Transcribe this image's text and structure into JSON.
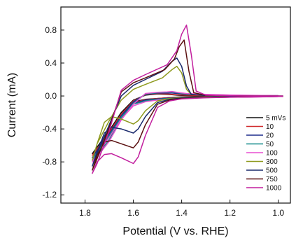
{
  "chart_data": {
    "type": "line",
    "title": "",
    "xlabel": "Potential (V vs. RHE)",
    "ylabel": "Current (mA)",
    "xlim": [
      1.9,
      0.95
    ],
    "ylim": [
      -1.3,
      1.08
    ],
    "x_reversed": true,
    "x_ticks": [
      "1.8",
      "1.6",
      "1.4",
      "1.2",
      "1.0"
    ],
    "y_ticks": [
      "0.8",
      "0.4",
      "0.0",
      "-0.4",
      "-0.8",
      "-1.2"
    ],
    "legend_position": "right",
    "grid": false,
    "series": [
      {
        "name": "5 mVs",
        "color": "#111111",
        "x": [
          1.0,
          1.1,
          1.2,
          1.3,
          1.38,
          1.42,
          1.44,
          1.46,
          1.5,
          1.55,
          1.6,
          1.65,
          1.7,
          1.75,
          1.77,
          1.75,
          1.7,
          1.65,
          1.6,
          1.55,
          1.5,
          1.45,
          1.4,
          1.3,
          1.2,
          1.1,
          1.0
        ],
        "y": [
          0.0,
          0.0,
          0.0,
          0.0,
          0.005,
          0.01,
          0.015,
          0.02,
          0.025,
          0.01,
          -0.05,
          -0.2,
          -0.45,
          -0.65,
          -0.7,
          -0.62,
          -0.42,
          -0.2,
          -0.07,
          -0.04,
          -0.03,
          -0.02,
          -0.01,
          -0.01,
          -0.01,
          -0.005,
          0.0
        ]
      },
      {
        "name": "10",
        "color": "#d0282a",
        "x": [
          1.0,
          1.1,
          1.2,
          1.3,
          1.38,
          1.42,
          1.44,
          1.46,
          1.5,
          1.55,
          1.6,
          1.65,
          1.7,
          1.75,
          1.77,
          1.75,
          1.7,
          1.65,
          1.6,
          1.55,
          1.5,
          1.45,
          1.4,
          1.3,
          1.2,
          1.1,
          1.0
        ],
        "y": [
          0.0,
          0.0,
          0.0,
          0.005,
          0.01,
          0.015,
          0.02,
          0.025,
          0.03,
          0.015,
          -0.06,
          -0.22,
          -0.47,
          -0.67,
          -0.72,
          -0.64,
          -0.44,
          -0.22,
          -0.08,
          -0.045,
          -0.03,
          -0.02,
          -0.012,
          -0.01,
          -0.01,
          -0.005,
          0.0
        ]
      },
      {
        "name": "20",
        "color": "#1f2d8c",
        "x": [
          1.0,
          1.1,
          1.2,
          1.3,
          1.38,
          1.42,
          1.44,
          1.46,
          1.5,
          1.55,
          1.6,
          1.65,
          1.7,
          1.75,
          1.77,
          1.75,
          1.7,
          1.65,
          1.6,
          1.55,
          1.5,
          1.45,
          1.4,
          1.3,
          1.2,
          1.1,
          1.0
        ],
        "y": [
          0.0,
          0.0,
          0.005,
          0.01,
          0.02,
          0.03,
          0.035,
          0.035,
          0.035,
          0.02,
          -0.07,
          -0.24,
          -0.5,
          -0.7,
          -0.75,
          -0.66,
          -0.46,
          -0.24,
          -0.09,
          -0.05,
          -0.035,
          -0.025,
          -0.015,
          -0.012,
          -0.01,
          -0.008,
          0.0
        ]
      },
      {
        "name": "50",
        "color": "#158a8a",
        "x": [
          1.0,
          1.1,
          1.2,
          1.3,
          1.38,
          1.42,
          1.44,
          1.46,
          1.5,
          1.55,
          1.6,
          1.65,
          1.7,
          1.75,
          1.77,
          1.75,
          1.7,
          1.65,
          1.6,
          1.55,
          1.5,
          1.45,
          1.4,
          1.3,
          1.2,
          1.1,
          1.0
        ],
        "y": [
          0.005,
          0.005,
          0.01,
          0.015,
          0.025,
          0.04,
          0.05,
          0.045,
          0.04,
          0.025,
          -0.09,
          -0.27,
          -0.53,
          -0.72,
          -0.78,
          -0.68,
          -0.48,
          -0.26,
          -0.1,
          -0.06,
          -0.04,
          -0.03,
          -0.02,
          -0.015,
          -0.012,
          -0.01,
          -0.005
        ]
      },
      {
        "name": "100",
        "color": "#e84fd0",
        "x": [
          1.0,
          1.1,
          1.2,
          1.3,
          1.38,
          1.42,
          1.44,
          1.46,
          1.5,
          1.55,
          1.6,
          1.65,
          1.7,
          1.75,
          1.77,
          1.75,
          1.7,
          1.65,
          1.6,
          1.55,
          1.5,
          1.45,
          1.4,
          1.3,
          1.2,
          1.1,
          1.0
        ],
        "y": [
          0.005,
          0.008,
          0.012,
          0.02,
          0.03,
          0.045,
          0.055,
          0.05,
          0.045,
          0.03,
          -0.1,
          -0.29,
          -0.55,
          -0.74,
          -0.8,
          -0.7,
          -0.5,
          -0.28,
          -0.12,
          -0.07,
          -0.05,
          -0.035,
          -0.025,
          -0.018,
          -0.015,
          -0.012,
          -0.008
        ]
      },
      {
        "name": "300",
        "color": "#8e9a1e",
        "x": [
          0.98,
          1.1,
          1.2,
          1.3,
          1.36,
          1.38,
          1.4,
          1.42,
          1.44,
          1.48,
          1.55,
          1.6,
          1.65,
          1.7,
          1.75,
          1.77,
          1.75,
          1.72,
          1.69,
          1.65,
          1.6,
          1.58,
          1.55,
          1.5,
          1.45,
          1.4,
          1.3,
          1.2,
          1.1,
          0.98
        ],
        "y": [
          0.0,
          0.0,
          0.0,
          0.005,
          0.02,
          0.08,
          0.28,
          0.36,
          0.32,
          0.22,
          0.14,
          0.08,
          -0.05,
          -0.3,
          -0.58,
          -0.78,
          -0.58,
          -0.32,
          -0.25,
          -0.28,
          -0.34,
          -0.3,
          -0.18,
          -0.06,
          -0.03,
          -0.02,
          -0.015,
          -0.01,
          -0.008,
          -0.005
        ]
      },
      {
        "name": "500",
        "color": "#1a2a6c",
        "x": [
          0.98,
          1.1,
          1.2,
          1.3,
          1.36,
          1.38,
          1.4,
          1.42,
          1.44,
          1.48,
          1.55,
          1.6,
          1.65,
          1.7,
          1.75,
          1.77,
          1.75,
          1.72,
          1.69,
          1.65,
          1.6,
          1.58,
          1.55,
          1.5,
          1.45,
          1.4,
          1.3,
          1.2,
          1.1,
          0.98
        ],
        "y": [
          0.0,
          0.0,
          0.0,
          0.005,
          0.02,
          0.12,
          0.36,
          0.46,
          0.42,
          0.3,
          0.2,
          0.13,
          0.0,
          -0.35,
          -0.7,
          -0.85,
          -0.68,
          -0.45,
          -0.38,
          -0.4,
          -0.45,
          -0.4,
          -0.25,
          -0.08,
          -0.04,
          -0.025,
          -0.018,
          -0.012,
          -0.01,
          -0.005
        ]
      },
      {
        "name": "750",
        "color": "#5a1010",
        "x": [
          0.98,
          1.1,
          1.2,
          1.3,
          1.35,
          1.37,
          1.39,
          1.41,
          1.43,
          1.47,
          1.55,
          1.6,
          1.65,
          1.7,
          1.75,
          1.77,
          1.75,
          1.72,
          1.69,
          1.65,
          1.6,
          1.58,
          1.55,
          1.5,
          1.45,
          1.4,
          1.3,
          1.2,
          1.1,
          0.98
        ],
        "y": [
          0.0,
          0.0,
          0.002,
          0.008,
          0.04,
          0.3,
          0.68,
          0.6,
          0.45,
          0.32,
          0.22,
          0.16,
          0.05,
          -0.38,
          -0.76,
          -0.9,
          -0.72,
          -0.56,
          -0.54,
          -0.58,
          -0.63,
          -0.56,
          -0.35,
          -0.1,
          -0.05,
          -0.03,
          -0.02,
          -0.015,
          -0.01,
          -0.005
        ]
      },
      {
        "name": "1000",
        "color": "#c21f9e",
        "x": [
          0.98,
          1.1,
          1.2,
          1.3,
          1.34,
          1.36,
          1.38,
          1.4,
          1.42,
          1.46,
          1.55,
          1.6,
          1.65,
          1.7,
          1.75,
          1.77,
          1.75,
          1.72,
          1.69,
          1.65,
          1.6,
          1.58,
          1.55,
          1.5,
          1.45,
          1.4,
          1.3,
          1.2,
          1.1,
          0.98
        ],
        "y": [
          0.0,
          0.0,
          0.003,
          0.01,
          0.06,
          0.5,
          0.86,
          0.75,
          0.55,
          0.38,
          0.26,
          0.19,
          0.07,
          -0.42,
          -0.82,
          -0.94,
          -0.8,
          -0.71,
          -0.7,
          -0.75,
          -0.82,
          -0.74,
          -0.48,
          -0.14,
          -0.06,
          -0.035,
          -0.022,
          -0.016,
          -0.012,
          -0.005
        ]
      }
    ]
  }
}
